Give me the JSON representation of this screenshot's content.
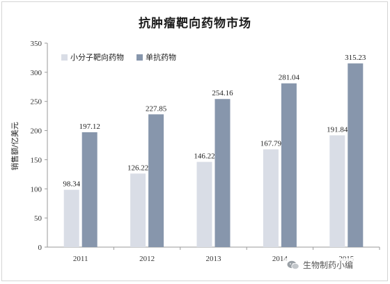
{
  "chart_data": {
    "type": "bar",
    "title": "抗肿瘤靶向药物市场",
    "ylabel": "销售额/亿美元",
    "xlabel": "",
    "categories": [
      "2011",
      "2012",
      "2013",
      "2014",
      "2015"
    ],
    "series": [
      {
        "name": "小分子靶向药物",
        "color": "#d9dde6",
        "values": [
          98.34,
          126.22,
          146.22,
          167.79,
          191.84
        ],
        "labels": [
          "98.34",
          "126.22",
          "146.22",
          "167.79",
          "191.84"
        ]
      },
      {
        "name": "单抗药物",
        "color": "#8796ac",
        "values": [
          197.12,
          227.85,
          254.16,
          281.04,
          315.23
        ],
        "labels": [
          "197.12",
          "227.85",
          "254.16",
          "281.04",
          "315.23"
        ]
      }
    ],
    "ylim": [
      0,
      350
    ],
    "yticks": [
      0,
      50,
      100,
      150,
      200,
      250,
      300,
      350
    ],
    "grid": false,
    "legend": "top-left"
  },
  "watermark": {
    "text": "生物制药小编",
    "icon": "wechat-icon"
  }
}
